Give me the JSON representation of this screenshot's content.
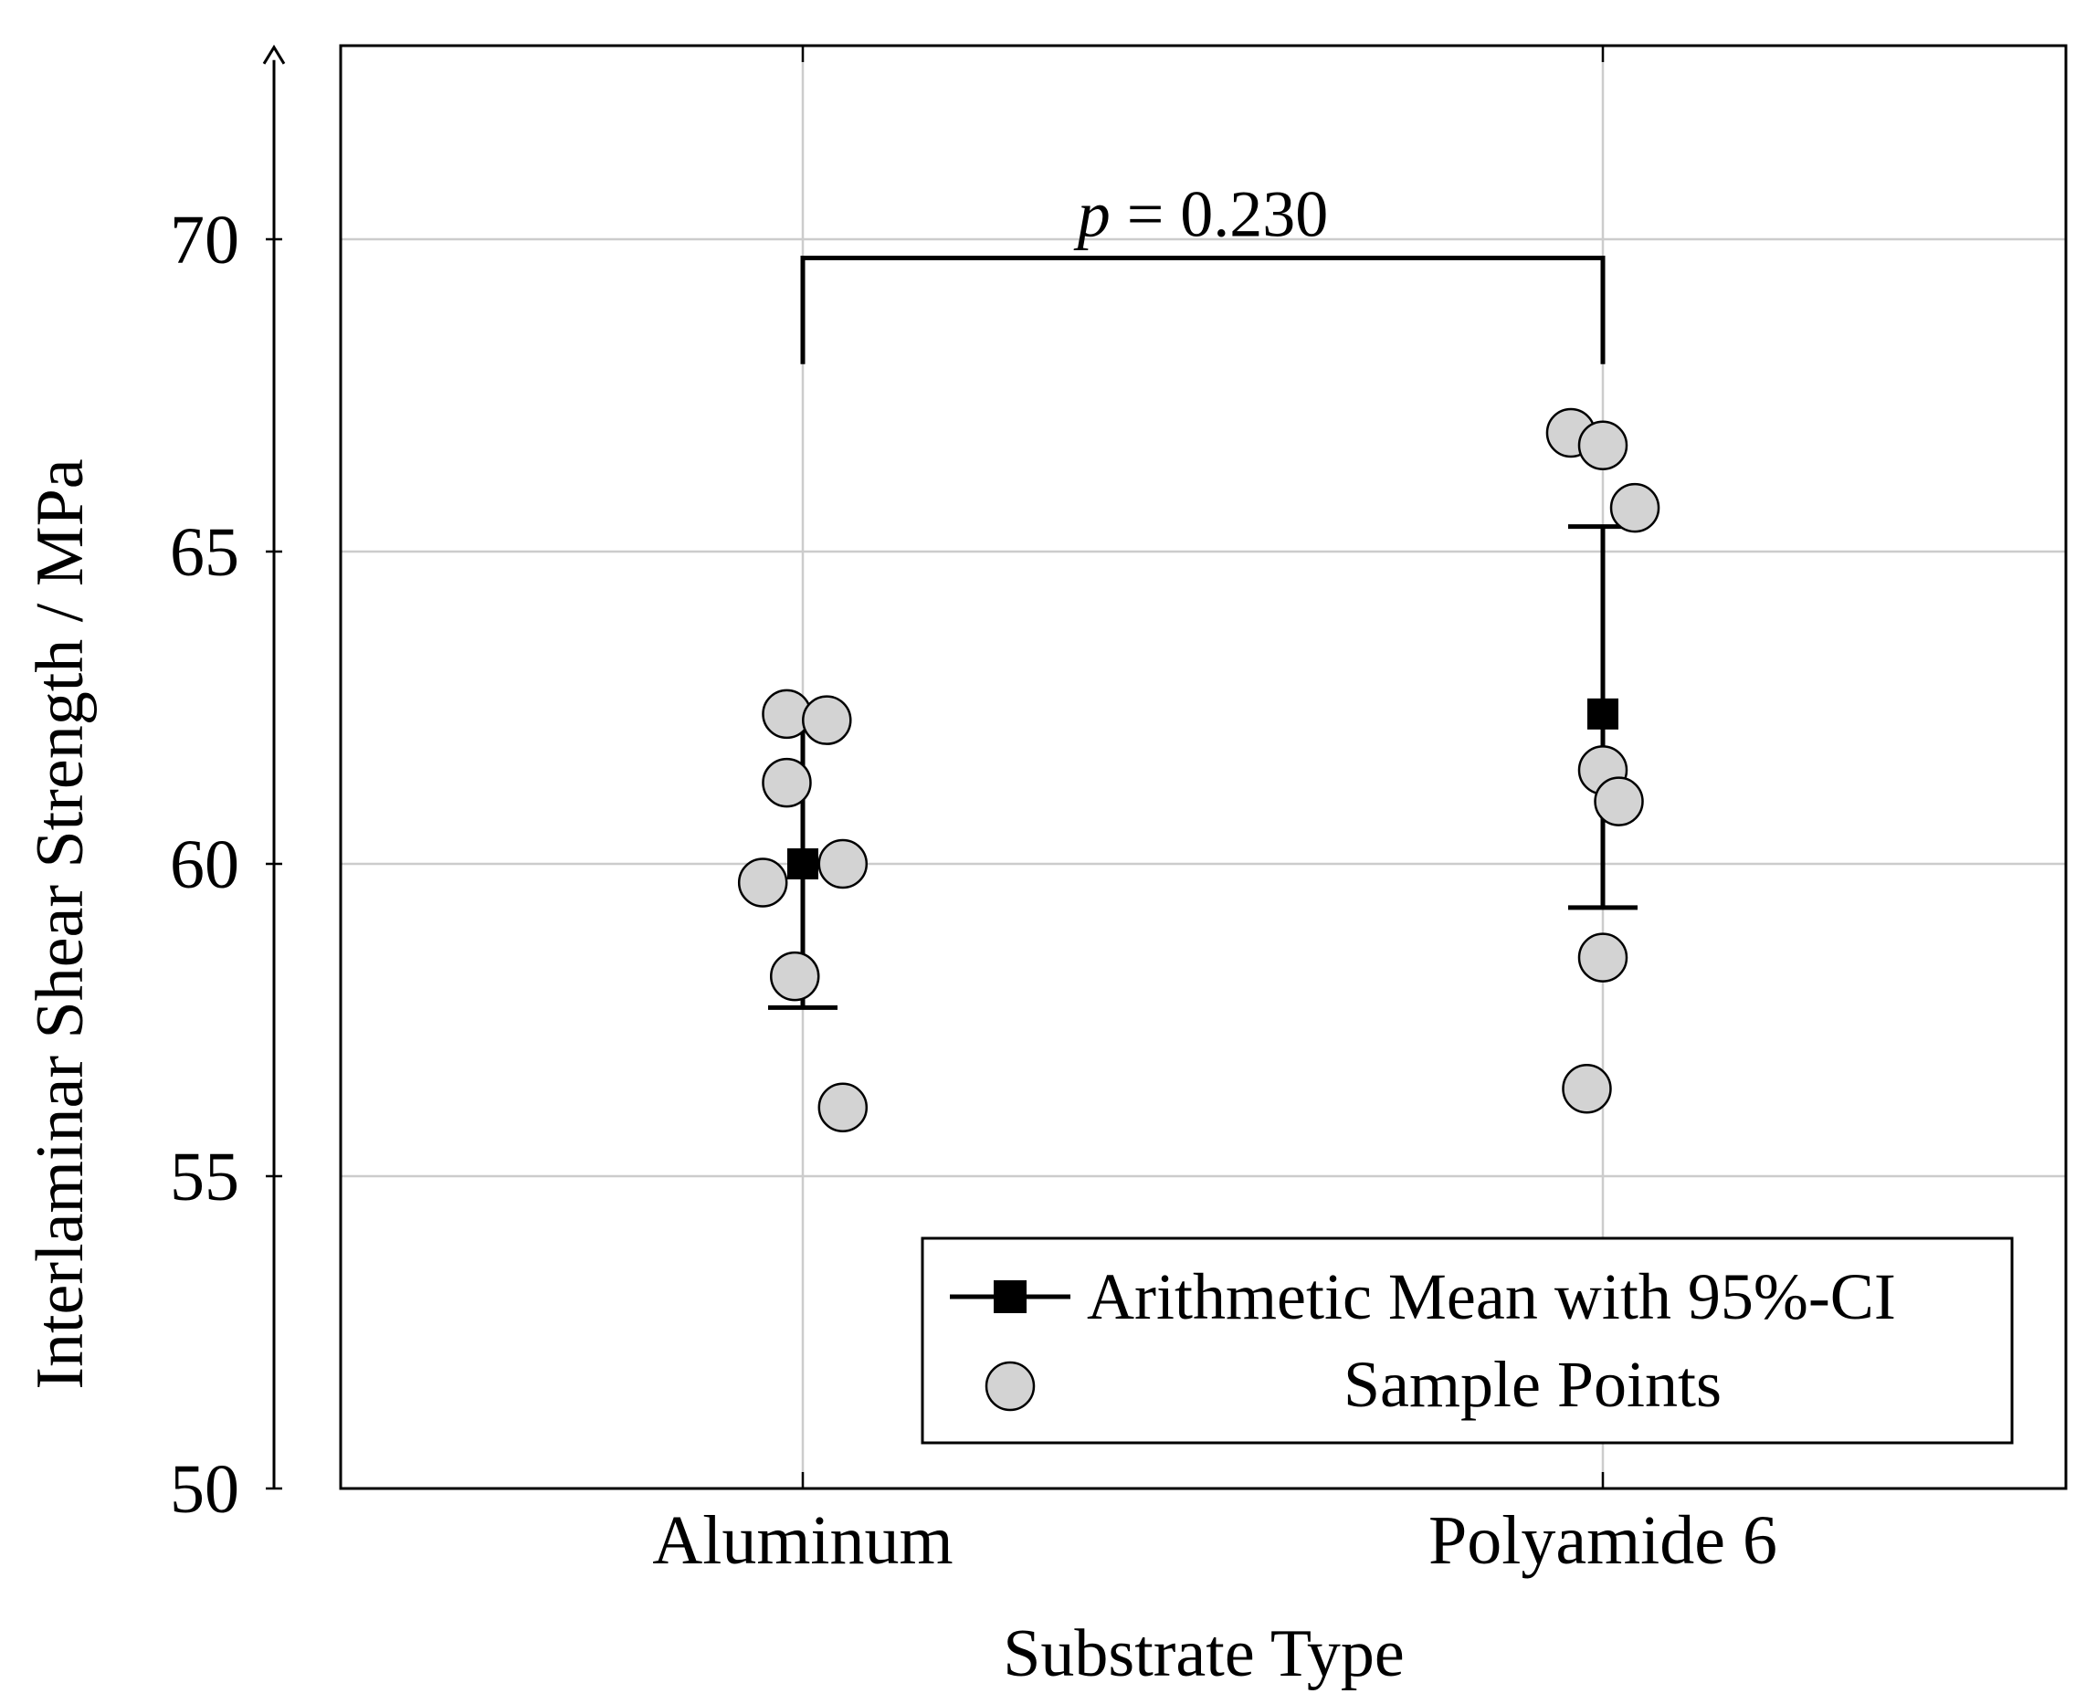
{
  "chart_data": {
    "type": "scatter",
    "title": "",
    "xlabel": "Substrate Type",
    "ylabel": "Interlaminar Shear Strength / MPa",
    "ylim": [
      50,
      73
    ],
    "yticks": [
      50,
      55,
      60,
      65,
      70
    ],
    "categories": [
      "Aluminum",
      "Polyamide 6"
    ],
    "grid": true,
    "legend_position": "bottom-right",
    "legend": {
      "mean_label": "Arithmetic Mean with 95%-CI",
      "points_label": "Sample Points"
    },
    "means": [
      {
        "category": "Aluminum",
        "mean": 60.0,
        "ci_low": 57.7,
        "ci_high": 62.3
      },
      {
        "category": "Polyamide 6",
        "mean": 62.4,
        "ci_low": 59.3,
        "ci_high": 65.4
      }
    ],
    "points": [
      {
        "category": "Aluminum",
        "jitter": -0.02,
        "value": 62.4
      },
      {
        "category": "Aluminum",
        "jitter": 0.03,
        "value": 62.3
      },
      {
        "category": "Aluminum",
        "jitter": -0.02,
        "value": 61.3
      },
      {
        "category": "Aluminum",
        "jitter": -0.05,
        "value": 59.7
      },
      {
        "category": "Aluminum",
        "jitter": 0.05,
        "value": 60.0
      },
      {
        "category": "Aluminum",
        "jitter": -0.01,
        "value": 58.2
      },
      {
        "category": "Aluminum",
        "jitter": 0.05,
        "value": 56.1
      },
      {
        "category": "Polyamide 6",
        "jitter": -0.04,
        "value": 66.9
      },
      {
        "category": "Polyamide 6",
        "jitter": 0.0,
        "value": 66.7
      },
      {
        "category": "Polyamide 6",
        "jitter": 0.04,
        "value": 65.7
      },
      {
        "category": "Polyamide 6",
        "jitter": 0.0,
        "value": 61.5
      },
      {
        "category": "Polyamide 6",
        "jitter": 0.02,
        "value": 61.0
      },
      {
        "category": "Polyamide 6",
        "jitter": 0.0,
        "value": 58.5
      },
      {
        "category": "Polyamide 6",
        "jitter": -0.02,
        "value": 56.4
      }
    ],
    "annotation": {
      "p_symbol": "p",
      "p_text": " = 0.230",
      "bracket_top": 69.7,
      "bracket_bottom": 68.0
    },
    "colors": {
      "marker_fill": "#d3d3d3",
      "line": "#000000",
      "grid": "#cccccc"
    }
  }
}
